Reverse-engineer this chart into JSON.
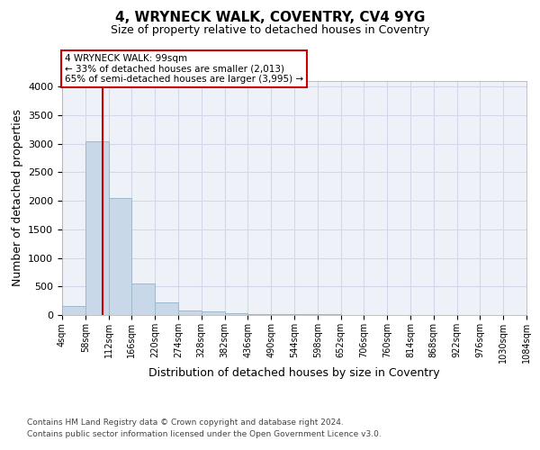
{
  "title": "4, WRYNECK WALK, COVENTRY, CV4 9YG",
  "subtitle": "Size of property relative to detached houses in Coventry",
  "xlabel": "Distribution of detached houses by size in Coventry",
  "ylabel": "Number of detached properties",
  "bar_color": "#c8d8e8",
  "bar_edgecolor": "#a0b8cc",
  "bin_edges": [
    4,
    58,
    112,
    166,
    220,
    274,
    328,
    382,
    436,
    490,
    544,
    598,
    652,
    706,
    760,
    814,
    868,
    922,
    976,
    1030,
    1084
  ],
  "bar_heights": [
    150,
    3050,
    2050,
    550,
    220,
    80,
    60,
    30,
    20,
    15,
    10,
    8,
    6,
    5,
    4,
    3,
    2,
    2,
    1,
    1
  ],
  "property_size": 99,
  "red_line_x": 99,
  "red_line_color": "#cc0000",
  "annotation_line1": "4 WRYNECK WALK: 99sqm",
  "annotation_line2": "← 33% of detached houses are smaller (2,013)",
  "annotation_line3": "65% of semi-detached houses are larger (3,995) →",
  "annotation_box_color": "white",
  "annotation_box_edgecolor": "#cc0000",
  "ylim": [
    0,
    4100
  ],
  "yticks": [
    0,
    500,
    1000,
    1500,
    2000,
    2500,
    3000,
    3500,
    4000
  ],
  "grid_color": "#d0d8e8",
  "background_color": "#eef2f8",
  "footer_line1": "Contains HM Land Registry data © Crown copyright and database right 2024.",
  "footer_line2": "Contains public sector information licensed under the Open Government Licence v3.0.",
  "tick_labels": [
    "4sqm",
    "58sqm",
    "112sqm",
    "166sqm",
    "220sqm",
    "274sqm",
    "328sqm",
    "382sqm",
    "436sqm",
    "490sqm",
    "544sqm",
    "598sqm",
    "652sqm",
    "706sqm",
    "760sqm",
    "814sqm",
    "868sqm",
    "922sqm",
    "976sqm",
    "1030sqm",
    "1084sqm"
  ]
}
